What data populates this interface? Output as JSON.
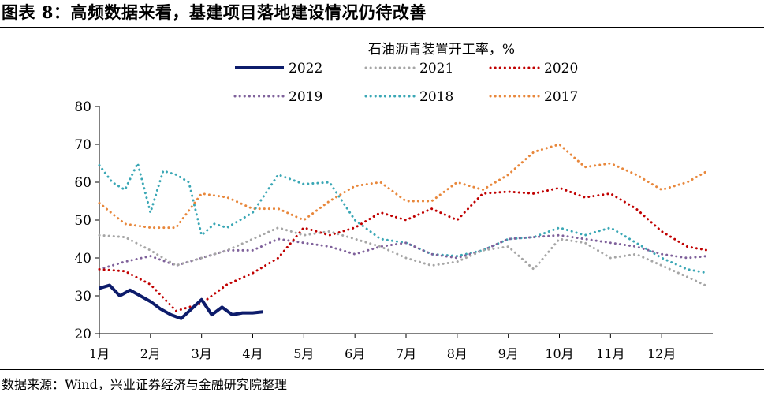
{
  "header": {
    "title": "图表 8：高频数据来看，基建项目落地建设情况仍待改善"
  },
  "footer": {
    "source": "数据来源：Wind，兴业证券经济与金融研究院整理"
  },
  "colors": {
    "2022": "#0d1c6b",
    "2021": "#a6a6a6",
    "2020": "#c00000",
    "2019": "#7f619b",
    "2018": "#3aa7b5",
    "2017": "#e8873b"
  },
  "chart_data": {
    "type": "line",
    "title": "石油沥青装置开工率，%",
    "xlabel": "",
    "ylabel": "",
    "x_range": [
      1,
      13
    ],
    "ylim": [
      20,
      80
    ],
    "yticks": [
      20,
      30,
      40,
      50,
      60,
      70,
      80
    ],
    "xtick_labels": [
      "1月",
      "2月",
      "3月",
      "4月",
      "5月",
      "6月",
      "7月",
      "8月",
      "9月",
      "10月",
      "11月",
      "12月"
    ],
    "xtick_positions": [
      1,
      2,
      3,
      4,
      5,
      6,
      7,
      8,
      9,
      10,
      11,
      12
    ],
    "legend_position": "top",
    "series": [
      {
        "name": "2022",
        "style": "solid",
        "x": [
          1.0,
          1.2,
          1.4,
          1.6,
          1.8,
          2.0,
          2.2,
          2.4,
          2.6,
          2.8,
          3.0,
          3.2,
          3.4,
          3.6,
          3.8,
          4.0,
          4.2
        ],
        "values": [
          32.0,
          32.8,
          30.0,
          31.5,
          30.0,
          28.5,
          26.5,
          25.0,
          24.0,
          26.5,
          29.0,
          25.0,
          27.0,
          25.0,
          25.5,
          25.5,
          25.8
        ]
      },
      {
        "name": "2021",
        "style": "dotted",
        "x": [
          1.0,
          1.5,
          2.0,
          2.5,
          3.0,
          3.5,
          4.0,
          4.5,
          5.0,
          5.5,
          6.0,
          6.5,
          7.0,
          7.5,
          8.0,
          8.5,
          9.0,
          9.5,
          10.0,
          10.5,
          11.0,
          11.5,
          12.0,
          12.5,
          12.9
        ],
        "values": [
          46.0,
          45.5,
          42.0,
          38.0,
          40.0,
          42.0,
          45.0,
          48.0,
          46.0,
          47.0,
          45.0,
          43.0,
          40.0,
          38.0,
          39.0,
          42.0,
          43.0,
          37.0,
          45.0,
          44.0,
          40.0,
          41.0,
          38.0,
          35.0,
          32.5
        ]
      },
      {
        "name": "2020",
        "style": "dotted",
        "x": [
          1.0,
          1.5,
          2.0,
          2.5,
          3.0,
          3.5,
          4.0,
          4.5,
          5.0,
          5.5,
          6.0,
          6.5,
          7.0,
          7.5,
          8.0,
          8.5,
          9.0,
          9.5,
          10.0,
          10.5,
          11.0,
          11.5,
          12.0,
          12.5,
          12.9
        ],
        "values": [
          37.0,
          36.5,
          33.0,
          26.0,
          28.0,
          33.0,
          36.0,
          40.0,
          48.0,
          46.0,
          48.0,
          52.0,
          50.0,
          53.0,
          50.0,
          57.0,
          57.5,
          57.0,
          58.5,
          56.0,
          57.0,
          53.0,
          47.0,
          43.0,
          42.0
        ]
      },
      {
        "name": "2019",
        "style": "dotted",
        "x": [
          1.0,
          1.5,
          2.0,
          2.5,
          3.0,
          3.5,
          4.0,
          4.5,
          5.0,
          5.5,
          6.0,
          6.5,
          7.0,
          7.5,
          8.0,
          8.5,
          9.0,
          9.5,
          10.0,
          10.5,
          11.0,
          11.5,
          12.0,
          12.5,
          12.9
        ],
        "values": [
          37.0,
          39.0,
          40.5,
          38.0,
          40.0,
          42.0,
          42.0,
          45.0,
          44.0,
          43.0,
          41.0,
          43.0,
          44.0,
          41.0,
          40.0,
          42.0,
          45.0,
          45.5,
          46.0,
          45.0,
          44.0,
          43.0,
          41.0,
          40.0,
          40.5
        ]
      },
      {
        "name": "2018",
        "style": "dotted",
        "x": [
          1.0,
          1.25,
          1.5,
          1.75,
          2.0,
          2.25,
          2.5,
          2.75,
          3.0,
          3.25,
          3.5,
          3.75,
          4.0,
          4.5,
          5.0,
          5.5,
          6.0,
          6.5,
          7.0,
          7.5,
          8.0,
          8.5,
          9.0,
          9.5,
          10.0,
          10.5,
          11.0,
          11.5,
          12.0,
          12.5,
          12.9
        ],
        "values": [
          64.5,
          60.0,
          58.0,
          65.0,
          52.0,
          63.0,
          62.0,
          60.0,
          46.0,
          49.0,
          48.0,
          50.0,
          52.0,
          62.0,
          59.5,
          60.0,
          50.0,
          45.0,
          44.0,
          41.0,
          40.5,
          42.0,
          45.0,
          45.5,
          48.0,
          46.0,
          48.0,
          44.0,
          40.0,
          37.0,
          36.0
        ]
      },
      {
        "name": "2017",
        "style": "dotted",
        "x": [
          1.0,
          1.5,
          2.0,
          2.5,
          3.0,
          3.5,
          4.0,
          4.5,
          5.0,
          5.5,
          6.0,
          6.5,
          7.0,
          7.5,
          8.0,
          8.5,
          9.0,
          9.5,
          10.0,
          10.5,
          11.0,
          11.5,
          12.0,
          12.5,
          12.9
        ],
        "values": [
          54.5,
          49.0,
          48.0,
          48.0,
          57.0,
          56.0,
          53.0,
          53.0,
          50.0,
          55.0,
          59.0,
          60.0,
          55.0,
          55.0,
          60.0,
          58.0,
          62.0,
          68.0,
          70.0,
          64.0,
          65.0,
          62.0,
          58.0,
          60.0,
          63.0
        ]
      }
    ]
  }
}
